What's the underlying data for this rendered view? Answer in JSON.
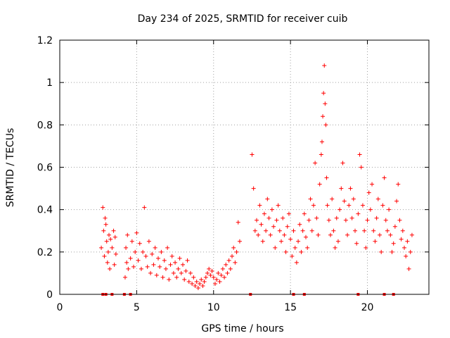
{
  "chart_data": {
    "type": "scatter",
    "title": "Day 234 of 2025, SRMTID for receiver cuib",
    "xlabel": "GPS time / hours",
    "ylabel": "SRMTID / TECUs",
    "xlim": [
      0,
      24
    ],
    "ylim": [
      0,
      1.2
    ],
    "x_ticks": [
      0,
      5,
      10,
      15,
      20
    ],
    "y_ticks": [
      0,
      0.2,
      0.4,
      0.6,
      0.8,
      1,
      1.2
    ],
    "x_tick_labels": [
      "0",
      "5",
      "10",
      "15",
      "20"
    ],
    "y_tick_labels": [
      "0",
      "0.2",
      "0.4",
      "0.6",
      "0.8",
      "1",
      "1.2"
    ],
    "grid": true,
    "marker": "plus",
    "series_color": "#ff0000",
    "series": [
      {
        "name": "SRMTID",
        "x": [
          2.7,
          2.8,
          2.85,
          2.9,
          2.95,
          3.0,
          3.05,
          3.1,
          3.15,
          3.2,
          3.25,
          3.3,
          3.4,
          3.5,
          3.55,
          3.6,
          3.65,
          4.25,
          4.3,
          4.35,
          4.4,
          4.45,
          4.6,
          4.7,
          4.8,
          4.9,
          5.0,
          5.1,
          5.2,
          5.3,
          5.4,
          5.5,
          5.6,
          5.7,
          5.8,
          5.9,
          6.0,
          6.1,
          6.2,
          6.3,
          6.4,
          6.5,
          6.6,
          6.7,
          6.8,
          6.9,
          7.0,
          7.1,
          7.2,
          7.3,
          7.4,
          7.5,
          7.6,
          7.7,
          7.8,
          7.9,
          8.0,
          8.1,
          8.2,
          8.3,
          8.4,
          8.5,
          8.6,
          8.7,
          8.8,
          8.9,
          9.0,
          9.1,
          9.2,
          9.3,
          9.4,
          9.5,
          9.6,
          9.7,
          9.8,
          9.9,
          10.0,
          10.1,
          10.2,
          10.3,
          10.4,
          10.5,
          10.6,
          10.7,
          10.8,
          10.9,
          11.0,
          11.1,
          11.2,
          11.3,
          11.4,
          11.5,
          11.6,
          11.7,
          12.5,
          12.6,
          12.7,
          12.8,
          12.9,
          13.0,
          13.1,
          13.2,
          13.3,
          13.4,
          13.5,
          13.6,
          13.7,
          13.8,
          13.9,
          14.0,
          14.1,
          14.2,
          14.3,
          14.4,
          14.5,
          14.6,
          14.7,
          14.8,
          14.9,
          15.0,
          15.1,
          15.2,
          15.3,
          15.4,
          15.5,
          15.6,
          15.7,
          15.8,
          15.9,
          16.0,
          16.1,
          16.2,
          16.3,
          16.4,
          16.5,
          16.6,
          16.7,
          16.8,
          16.9,
          17.0,
          17.05,
          17.1,
          17.15,
          17.2,
          17.25,
          17.3,
          17.35,
          17.4,
          17.5,
          17.6,
          17.7,
          17.8,
          17.9,
          18.0,
          18.1,
          18.2,
          18.3,
          18.4,
          18.5,
          18.6,
          18.7,
          18.8,
          18.9,
          19.0,
          19.1,
          19.2,
          19.3,
          19.4,
          19.5,
          19.6,
          19.7,
          19.8,
          19.9,
          20.0,
          20.1,
          20.2,
          20.3,
          20.4,
          20.5,
          20.6,
          20.7,
          20.8,
          20.9,
          21.0,
          21.1,
          21.2,
          21.3,
          21.4,
          21.5,
          21.6,
          21.7,
          21.8,
          21.9,
          22.0,
          22.1,
          22.2,
          22.3,
          22.4,
          22.5,
          22.6,
          22.7,
          22.8,
          22.9
        ],
        "y": [
          0.22,
          0.41,
          0.3,
          0.18,
          0.36,
          0.33,
          0.25,
          0.15,
          0.2,
          0.28,
          0.12,
          0.26,
          0.22,
          0.3,
          0.14,
          0.27,
          0.19,
          0.08,
          0.22,
          0.15,
          0.28,
          0.12,
          0.17,
          0.25,
          0.13,
          0.2,
          0.29,
          0.16,
          0.24,
          0.12,
          0.2,
          0.41,
          0.18,
          0.13,
          0.25,
          0.1,
          0.19,
          0.14,
          0.22,
          0.09,
          0.17,
          0.13,
          0.2,
          0.08,
          0.16,
          0.12,
          0.22,
          0.07,
          0.14,
          0.18,
          0.1,
          0.15,
          0.08,
          0.12,
          0.17,
          0.1,
          0.14,
          0.07,
          0.11,
          0.16,
          0.06,
          0.1,
          0.05,
          0.08,
          0.04,
          0.06,
          0.03,
          0.05,
          0.07,
          0.04,
          0.06,
          0.08,
          0.1,
          0.12,
          0.09,
          0.11,
          0.08,
          0.05,
          0.07,
          0.1,
          0.06,
          0.09,
          0.12,
          0.08,
          0.14,
          0.1,
          0.16,
          0.12,
          0.18,
          0.22,
          0.15,
          0.2,
          0.34,
          0.25,
          0.66,
          0.5,
          0.3,
          0.35,
          0.28,
          0.42,
          0.33,
          0.25,
          0.38,
          0.3,
          0.45,
          0.36,
          0.28,
          0.4,
          0.32,
          0.22,
          0.35,
          0.42,
          0.3,
          0.25,
          0.36,
          0.28,
          0.2,
          0.32,
          0.38,
          0.26,
          0.18,
          0.3,
          0.22,
          0.15,
          0.25,
          0.33,
          0.2,
          0.3,
          0.38,
          0.27,
          0.22,
          0.35,
          0.45,
          0.3,
          0.42,
          0.62,
          0.36,
          0.28,
          0.52,
          0.66,
          0.72,
          0.84,
          0.95,
          1.08,
          0.9,
          0.8,
          0.55,
          0.42,
          0.35,
          0.28,
          0.45,
          0.3,
          0.22,
          0.36,
          0.25,
          0.4,
          0.5,
          0.62,
          0.44,
          0.35,
          0.28,
          0.42,
          0.5,
          0.36,
          0.45,
          0.3,
          0.24,
          0.38,
          0.66,
          0.6,
          0.42,
          0.3,
          0.22,
          0.35,
          0.48,
          0.4,
          0.52,
          0.3,
          0.25,
          0.36,
          0.45,
          0.28,
          0.2,
          0.42,
          0.55,
          0.35,
          0.3,
          0.4,
          0.28,
          0.2,
          0.24,
          0.32,
          0.44,
          0.52,
          0.35,
          0.26,
          0.3,
          0.22,
          0.18,
          0.25,
          0.12,
          0.2,
          0.28
        ]
      }
    ],
    "outliers_at_zero_x": [
      2.8,
      3.0,
      3.4,
      4.2,
      4.6,
      12.4,
      15.2,
      15.9,
      19.4,
      21.1,
      21.7
    ]
  }
}
